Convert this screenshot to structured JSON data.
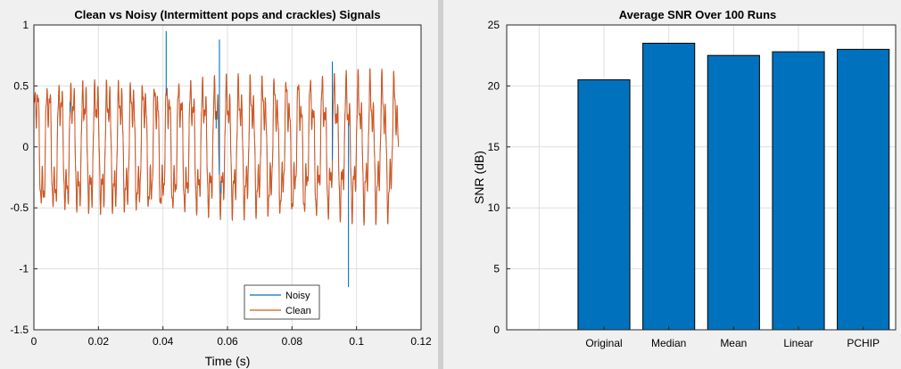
{
  "colors": {
    "panel_bg": "#f0f0f0",
    "divider": "#cfcfcf",
    "axes_bg": "#ffffff",
    "axes_edge": "#262626",
    "grid": "#dfdfdf",
    "noisy": "#0072BD",
    "clean": "#D95319",
    "bar": "#0072BD"
  },
  "chart_data": [
    {
      "type": "line",
      "title": "Clean vs Noisy (Intermittent pops and crackles) Signals",
      "xlabel": "Time (s)",
      "ylabel": "",
      "xlim": [
        0,
        0.12
      ],
      "ylim": [
        -1.5,
        1
      ],
      "xticks": [
        0,
        0.02,
        0.04,
        0.06,
        0.08,
        0.1,
        0.12
      ],
      "xtick_labels": [
        "0",
        "0.02",
        "0.04",
        "0.06",
        "0.08",
        "0.1",
        "0.12"
      ],
      "yticks": [
        -1.5,
        -1,
        -0.5,
        0,
        0.5,
        1
      ],
      "ytick_labels": [
        "-1.5",
        "-1",
        "-0.5",
        "0",
        "0.5",
        "1"
      ],
      "grid": true,
      "legend": "bottom-right",
      "signal_x_range": [
        0,
        0.113
      ],
      "series": [
        {
          "name": "Noisy",
          "spikes": [
            {
              "x": 0.0105,
              "y": -0.38
            },
            {
              "x": 0.0112,
              "y": 0.37
            },
            {
              "x": 0.041,
              "y": 0.95
            },
            {
              "x": 0.0575,
              "y": 0.88
            },
            {
              "x": 0.058,
              "y": -0.28
            },
            {
              "x": 0.0565,
              "y": 0.15
            },
            {
              "x": 0.0975,
              "y": -1.15
            },
            {
              "x": 0.0925,
              "y": 0.7
            }
          ]
        },
        {
          "name": "Clean",
          "components": [
            {
              "amp": 0.43,
              "freq": 270
            },
            {
              "amp": 0.2,
              "freq": 808
            },
            {
              "amp": 0.08,
              "freq": 1910
            }
          ]
        }
      ]
    },
    {
      "type": "bar",
      "title": "Average SNR Over 100 Runs",
      "xlabel": "",
      "ylabel": "SNR (dB)",
      "categories": [
        "Original",
        "Median",
        "Mean",
        "Linear",
        "PCHIP"
      ],
      "values": [
        20.5,
        23.5,
        22.5,
        22.8,
        23.0
      ],
      "ylim": [
        0,
        25
      ],
      "yticks": [
        0,
        5,
        10,
        15,
        20,
        25
      ],
      "ytick_labels": [
        "0",
        "5",
        "10",
        "15",
        "20",
        "25"
      ],
      "xlim": [
        -0.5,
        5.5
      ],
      "grid": true
    }
  ]
}
